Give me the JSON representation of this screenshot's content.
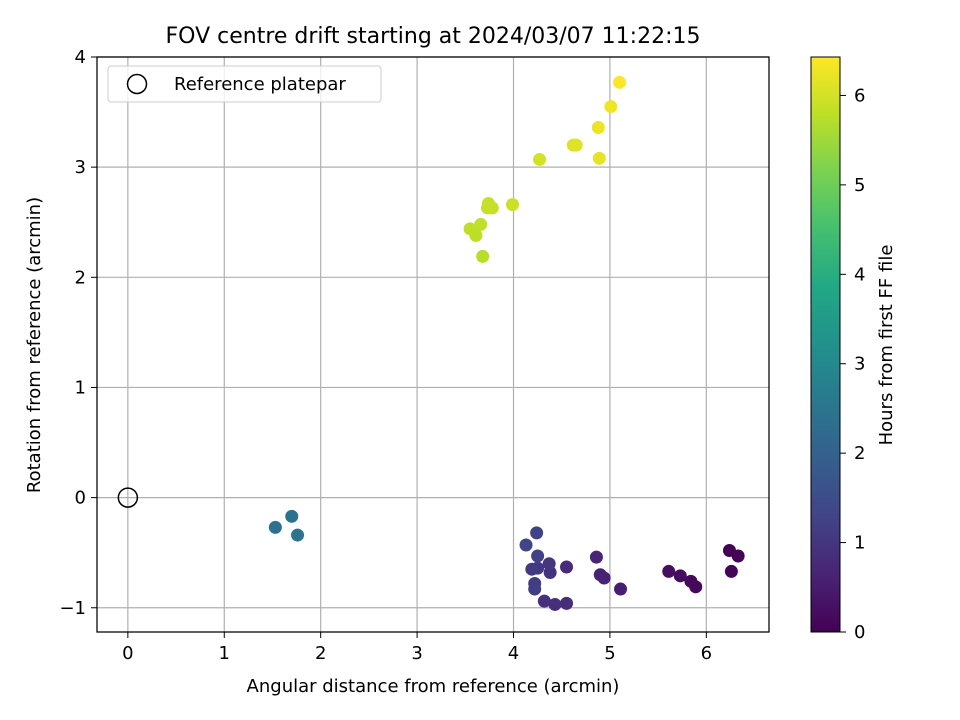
{
  "chart_data": {
    "type": "scatter",
    "title": "FOV centre drift starting at 2024/03/07 11:22:15",
    "xlabel": "Angular distance from reference (arcmin)",
    "ylabel": "Rotation from reference (arcmin)",
    "xlim": [
      -0.32,
      6.65
    ],
    "ylim": [
      -1.22,
      4.0
    ],
    "xticks": [
      0,
      1,
      2,
      3,
      4,
      5,
      6
    ],
    "xtick_labels": [
      "0",
      "1",
      "2",
      "3",
      "4",
      "5",
      "6"
    ],
    "yticks": [
      -1,
      0,
      1,
      2,
      3,
      4
    ],
    "ytick_labels": [
      "−1",
      "0",
      "1",
      "2",
      "3",
      "4"
    ],
    "grid": true,
    "legend": {
      "position": "upper-left",
      "entries": [
        "Reference platepar"
      ]
    },
    "reference_point": {
      "name": "Reference platepar",
      "x": 0,
      "y": 0,
      "marker": "hollow-circle",
      "color": "#000000"
    },
    "colorbar": {
      "label": "Hours from first FF file",
      "range": [
        0,
        6.43
      ],
      "ticks": [
        0,
        1,
        2,
        3,
        4,
        5,
        6
      ],
      "tick_labels": [
        "0",
        "1",
        "2",
        "3",
        "4",
        "5",
        "6"
      ],
      "colormap": "viridis"
    },
    "points": [
      {
        "x": 6.24,
        "y": -0.48,
        "t": 0.02
      },
      {
        "x": 6.33,
        "y": -0.53,
        "t": 0.05
      },
      {
        "x": 6.26,
        "y": -0.67,
        "t": 0.08
      },
      {
        "x": 5.89,
        "y": -0.81,
        "t": 0.12
      },
      {
        "x": 5.84,
        "y": -0.76,
        "t": 0.15
      },
      {
        "x": 5.73,
        "y": -0.71,
        "t": 0.19
      },
      {
        "x": 5.61,
        "y": -0.67,
        "t": 0.23
      },
      {
        "x": 5.11,
        "y": -0.83,
        "t": 0.55
      },
      {
        "x": 4.94,
        "y": -0.73,
        "t": 0.6
      },
      {
        "x": 4.9,
        "y": -0.7,
        "t": 0.63
      },
      {
        "x": 4.86,
        "y": -0.54,
        "t": 0.68
      },
      {
        "x": 4.55,
        "y": -0.63,
        "t": 0.78
      },
      {
        "x": 4.55,
        "y": -0.96,
        "t": 0.82
      },
      {
        "x": 4.43,
        "y": -0.97,
        "t": 0.86
      },
      {
        "x": 4.32,
        "y": -0.94,
        "t": 0.9
      },
      {
        "x": 4.38,
        "y": -0.68,
        "t": 0.95
      },
      {
        "x": 4.37,
        "y": -0.6,
        "t": 1.0
      },
      {
        "x": 4.25,
        "y": -0.64,
        "t": 1.05
      },
      {
        "x": 4.19,
        "y": -0.65,
        "t": 1.1
      },
      {
        "x": 4.22,
        "y": -0.78,
        "t": 1.13
      },
      {
        "x": 4.22,
        "y": -0.83,
        "t": 1.17
      },
      {
        "x": 4.25,
        "y": -0.53,
        "t": 1.22
      },
      {
        "x": 4.24,
        "y": -0.32,
        "t": 1.27
      },
      {
        "x": 4.13,
        "y": -0.43,
        "t": 1.32
      },
      {
        "x": 1.53,
        "y": -0.27,
        "t": 2.38
      },
      {
        "x": 1.7,
        "y": -0.17,
        "t": 2.43
      },
      {
        "x": 1.76,
        "y": -0.34,
        "t": 2.48
      },
      {
        "x": 3.68,
        "y": 2.19,
        "t": 5.75
      },
      {
        "x": 3.61,
        "y": 2.38,
        "t": 5.78
      },
      {
        "x": 3.55,
        "y": 2.44,
        "t": 5.8
      },
      {
        "x": 3.66,
        "y": 2.48,
        "t": 5.82
      },
      {
        "x": 3.73,
        "y": 2.63,
        "t": 5.85
      },
      {
        "x": 3.78,
        "y": 2.63,
        "t": 5.87
      },
      {
        "x": 3.74,
        "y": 2.67,
        "t": 5.88
      },
      {
        "x": 3.99,
        "y": 2.66,
        "t": 5.92
      },
      {
        "x": 4.27,
        "y": 3.07,
        "t": 6.0
      },
      {
        "x": 4.62,
        "y": 3.2,
        "t": 6.1
      },
      {
        "x": 4.65,
        "y": 3.2,
        "t": 6.13
      },
      {
        "x": 4.89,
        "y": 3.08,
        "t": 6.2
      },
      {
        "x": 4.88,
        "y": 3.36,
        "t": 6.25
      },
      {
        "x": 5.01,
        "y": 3.55,
        "t": 6.3
      },
      {
        "x": 5.1,
        "y": 3.77,
        "t": 6.4
      }
    ]
  }
}
